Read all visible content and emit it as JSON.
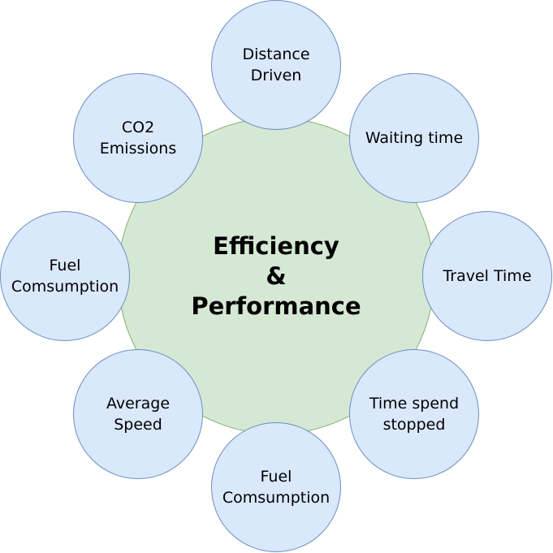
{
  "center": {
    "label": "Efficiency\n&\nPerformance",
    "fill": "#d5e8d4",
    "stroke": "#82b366"
  },
  "node_style": {
    "fill": "#dae8fc",
    "stroke": "#6c8ebf"
  },
  "nodes": [
    {
      "label": "Distance\nDriven"
    },
    {
      "label": "Waiting time"
    },
    {
      "label": "Travel Time"
    },
    {
      "label": "Time spend\nstopped"
    },
    {
      "label": "Fuel\nComsumption"
    },
    {
      "label": "Average\nSpeed"
    },
    {
      "label": "Fuel\nComsumption"
    },
    {
      "label": "CO2\nEmissions"
    }
  ]
}
